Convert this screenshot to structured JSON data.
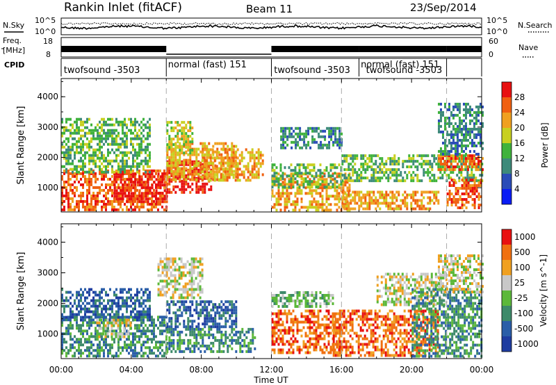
{
  "header": {
    "title": "Rankin Inlet (fitACF)",
    "beam": "Beam 11",
    "date": "23/Sep/2014"
  },
  "top_panels": {
    "nsky_label": "N.Sky",
    "nsearch_label": "N.Search",
    "noise_ticks": [
      "10^5",
      "10^0"
    ],
    "freq_label_1": "Freq.",
    "freq_label_2": "[MHz]",
    "freq_ticks": [
      "18",
      "8"
    ],
    "nave_label": "Nave",
    "nave_ticks": [
      "60",
      "0"
    ],
    "cpid_label": "CPID",
    "cpid_segments": [
      {
        "start_h": 0.0,
        "end_h": 6.0,
        "label": "twofsound -3503",
        "label_h": 0.15,
        "label_row": "low"
      },
      {
        "start_h": 6.0,
        "end_h": 12.0,
        "label": "normal (fast) 151",
        "label_h": 6.1,
        "label_row": "high"
      },
      {
        "start_h": 12.0,
        "end_h": 17.0,
        "label": "twofsound -3503",
        "label_h": 12.15,
        "label_row": "low"
      },
      {
        "start_h": 17.0,
        "end_h": 22.0,
        "label": "normal (fast) 151",
        "label_h": 17.1,
        "label_row": "high"
      },
      {
        "start_h": 17.0,
        "end_h": 22.0,
        "label": "twofsound -3503",
        "label_h": 17.4,
        "label_row": "low"
      },
      {
        "start_h": 22.0,
        "end_h": 24.0,
        "label": "",
        "label_h": 22.0,
        "label_row": "low"
      }
    ]
  },
  "chart_data": [
    {
      "type": "heatmap",
      "name": "power",
      "x_range_h": [
        0,
        24
      ],
      "ylim": [
        200,
        4600
      ],
      "ylabel": "Slant Range [km]",
      "yticks": [
        1000,
        2000,
        3000,
        4000
      ],
      "colorbar_label": "Power [dB]",
      "colorbar_ticks": [
        "4",
        "8",
        "12",
        "16",
        "20",
        "24",
        "28"
      ],
      "colorbar_colors": [
        "#0a1cf5",
        "#2a4cb8",
        "#3d8a7a",
        "#3fb23c",
        "#c8d020",
        "#f0a020",
        "#f06010",
        "#e81010"
      ],
      "features": [
        {
          "x": [
            0.0,
            6.0
          ],
          "y": [
            300,
            1600
          ],
          "level": 6
        },
        {
          "x": [
            3.0,
            6.0
          ],
          "y": [
            500,
            1500
          ],
          "level": 7
        },
        {
          "x": [
            6.0,
            8.5
          ],
          "y": [
            800,
            1900
          ],
          "level": 7
        },
        {
          "x": [
            6.0,
            10.0
          ],
          "y": [
            1300,
            2500
          ],
          "level": 5
        },
        {
          "x": [
            6.0,
            7.5
          ],
          "y": [
            2100,
            3200
          ],
          "level": 4
        },
        {
          "x": [
            8.0,
            11.5
          ],
          "y": [
            1200,
            2300
          ],
          "level": 5
        },
        {
          "x": [
            0.0,
            5.0
          ],
          "y": [
            1500,
            3300
          ],
          "level": 3
        },
        {
          "x": [
            12.0,
            16.5
          ],
          "y": [
            300,
            1500
          ],
          "level": 5
        },
        {
          "x": [
            12.0,
            16.0
          ],
          "y": [
            1000,
            1800
          ],
          "level": 3
        },
        {
          "x": [
            12.5,
            16.0
          ],
          "y": [
            2300,
            3000
          ],
          "level": 2
        },
        {
          "x": [
            16.0,
            21.5
          ],
          "y": [
            300,
            900
          ],
          "level": 5
        },
        {
          "x": [
            16.0,
            24.0
          ],
          "y": [
            1200,
            2100
          ],
          "level": 3
        },
        {
          "x": [
            21.5,
            24.0
          ],
          "y": [
            1600,
            2100
          ],
          "level": 6
        },
        {
          "x": [
            22.0,
            24.0
          ],
          "y": [
            300,
            1300
          ],
          "level": 6
        },
        {
          "x": [
            21.5,
            24.0
          ],
          "y": [
            2100,
            3800
          ],
          "level": 2
        }
      ]
    },
    {
      "type": "heatmap",
      "name": "velocity",
      "x_range_h": [
        0,
        24
      ],
      "ylim": [
        200,
        4600
      ],
      "ylabel": "Slant Range [km]",
      "yticks": [
        1000,
        2000,
        3000,
        4000
      ],
      "colorbar_label": "Velocity [m s^-1]",
      "colorbar_ticks": [
        "1000",
        "500",
        "100",
        "25",
        "-25",
        "-100",
        "-500",
        "-1000"
      ],
      "colorbar_colors": [
        "#1e3ca0",
        "#2a5ea8",
        "#3d8a6a",
        "#5cb83a",
        "#c8c8c8",
        "#f0a020",
        "#f07010",
        "#e81010"
      ],
      "features": [
        {
          "x": [
            0.0,
            6.0
          ],
          "y": [
            300,
            1600
          ],
          "level": 2
        },
        {
          "x": [
            0.0,
            5.0
          ],
          "y": [
            1500,
            2500
          ],
          "level": 1
        },
        {
          "x": [
            2.0,
            4.0
          ],
          "y": [
            900,
            1500
          ],
          "level": 4
        },
        {
          "x": [
            6.0,
            10.0
          ],
          "y": [
            1200,
            2100
          ],
          "level": 1
        },
        {
          "x": [
            5.5,
            8.0
          ],
          "y": [
            2200,
            3500
          ],
          "level": 4
        },
        {
          "x": [
            6.0,
            11.0
          ],
          "y": [
            400,
            1200
          ],
          "level": 2
        },
        {
          "x": [
            12.0,
            16.0
          ],
          "y": [
            400,
            1800
          ],
          "level": 6
        },
        {
          "x": [
            12.0,
            15.5
          ],
          "y": [
            1900,
            2400
          ],
          "level": 3
        },
        {
          "x": [
            15.5,
            21.5
          ],
          "y": [
            300,
            1800
          ],
          "level": 6
        },
        {
          "x": [
            18.0,
            22.0
          ],
          "y": [
            2000,
            3000
          ],
          "level": 4
        },
        {
          "x": [
            20.0,
            24.0
          ],
          "y": [
            300,
            2500
          ],
          "level": 2
        },
        {
          "x": [
            21.5,
            24.0
          ],
          "y": [
            2400,
            3600
          ],
          "level": 4
        }
      ]
    }
  ],
  "xaxis": {
    "label": "Time UT",
    "ticks": [
      {
        "h": 0,
        "label": "00:00"
      },
      {
        "h": 4,
        "label": "04:00"
      },
      {
        "h": 8,
        "label": "08:00"
      },
      {
        "h": 12,
        "label": "12:00"
      },
      {
        "h": 16,
        "label": "16:00"
      },
      {
        "h": 20,
        "label": "20:00"
      },
      {
        "h": 24,
        "label": "00:00"
      }
    ]
  }
}
